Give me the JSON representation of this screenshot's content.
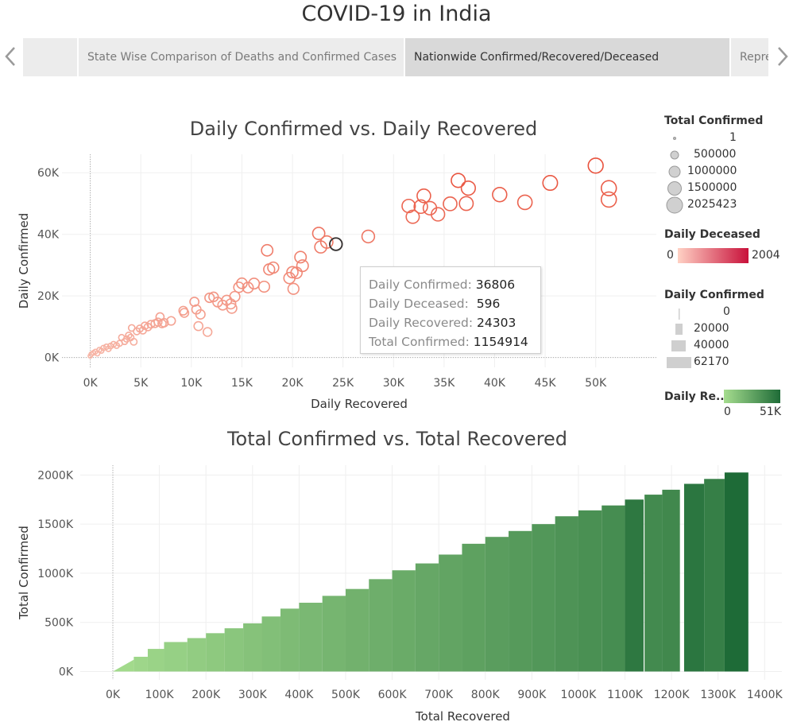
{
  "page_title": "COVID-19 in India",
  "story_tabs": [
    {
      "label": "State Wise Comparison of Deaths and Confirmed Cases",
      "active": false
    },
    {
      "label": "Nationwide Confirmed/Recovered/Deceased",
      "active": true
    },
    {
      "label": "Repre",
      "active": false
    }
  ],
  "nav": {
    "prev_icon": "chevron-left-icon",
    "next_icon": "chevron-right-icon"
  },
  "tooltip": {
    "rows": [
      {
        "label": "Daily Confirmed:",
        "value": "36806"
      },
      {
        "label": "Daily Deceased:",
        "value": "596"
      },
      {
        "label": "Daily Recovered:",
        "value": "24303"
      },
      {
        "label": "Total Confirmed:",
        "value": "1154914"
      }
    ]
  },
  "legends": {
    "size_total_confirmed": {
      "title": "Total Confirmed",
      "items": [
        "1",
        "500000",
        "1000000",
        "1500000",
        "2025423"
      ]
    },
    "color_daily_deceased": {
      "title": "Daily Deceased",
      "min": "0",
      "max": "2004",
      "color_start": "#ffd1c4",
      "color_end": "#c8103a"
    },
    "size_daily_confirmed": {
      "title": "Daily Confirmed",
      "items": [
        "0",
        "20000",
        "40000",
        "62170"
      ]
    },
    "color_daily_recovered": {
      "title": "Daily Re..",
      "min": "0",
      "max": "51K",
      "color_start": "#a6dd8f",
      "color_end": "#1e6b37"
    }
  },
  "chart_data": [
    {
      "type": "scatter",
      "title": "Daily Confirmed vs. Daily Recovered",
      "xlabel": "Daily Recovered",
      "ylabel": "Daily Confirmed",
      "xlim": [
        -2800,
        56000
      ],
      "ylim": [
        -3200,
        66000
      ],
      "x_ticks": [
        0,
        5000,
        10000,
        15000,
        20000,
        25000,
        30000,
        35000,
        40000,
        45000,
        50000
      ],
      "x_tick_labels": [
        "0K",
        "5K",
        "10K",
        "15K",
        "20K",
        "25K",
        "30K",
        "35K",
        "40K",
        "45K",
        "50K"
      ],
      "y_ticks": [
        0,
        20000,
        40000,
        60000
      ],
      "y_tick_labels": [
        "0K",
        "20K",
        "40K",
        "60K"
      ],
      "grid": true,
      "highlighted_point": {
        "x": 24303,
        "y": 36806
      },
      "points": [
        {
          "x": 0,
          "y": 500,
          "t": 1000
        },
        {
          "x": 100,
          "y": 1100,
          "t": 3000
        },
        {
          "x": 300,
          "y": 1500,
          "t": 5000
        },
        {
          "x": 500,
          "y": 1900,
          "t": 8000
        },
        {
          "x": 700,
          "y": 1300,
          "t": 9000
        },
        {
          "x": 900,
          "y": 2500,
          "t": 12000
        },
        {
          "x": 1100,
          "y": 2200,
          "t": 15000
        },
        {
          "x": 1300,
          "y": 3100,
          "t": 20000
        },
        {
          "x": 1600,
          "y": 3500,
          "t": 25000
        },
        {
          "x": 1800,
          "y": 2800,
          "t": 27000
        },
        {
          "x": 2000,
          "y": 3700,
          "t": 35000
        },
        {
          "x": 2300,
          "y": 4300,
          "t": 40000
        },
        {
          "x": 2600,
          "y": 3900,
          "t": 45000
        },
        {
          "x": 2900,
          "y": 4600,
          "t": 52000
        },
        {
          "x": 3100,
          "y": 6500,
          "t": 60000
        },
        {
          "x": 3400,
          "y": 5200,
          "t": 65000
        },
        {
          "x": 3600,
          "y": 6000,
          "t": 72000
        },
        {
          "x": 3800,
          "y": 7200,
          "t": 80000
        },
        {
          "x": 4000,
          "y": 6500,
          "t": 90000
        },
        {
          "x": 4100,
          "y": 9600,
          "t": 100000
        },
        {
          "x": 4300,
          "y": 5100,
          "t": 110000
        },
        {
          "x": 4600,
          "y": 8500,
          "t": 120000
        },
        {
          "x": 4900,
          "y": 9400,
          "t": 135000
        },
        {
          "x": 5200,
          "y": 8800,
          "t": 150000
        },
        {
          "x": 5400,
          "y": 10300,
          "t": 165000
        },
        {
          "x": 5700,
          "y": 9900,
          "t": 180000
        },
        {
          "x": 6000,
          "y": 10800,
          "t": 200000
        },
        {
          "x": 6400,
          "y": 11000,
          "t": 220000
        },
        {
          "x": 6700,
          "y": 11500,
          "t": 240000
        },
        {
          "x": 6900,
          "y": 13200,
          "t": 260000
        },
        {
          "x": 7100,
          "y": 11000,
          "t": 280000
        },
        {
          "x": 7300,
          "y": 11300,
          "t": 300000
        },
        {
          "x": 8000,
          "y": 11900,
          "t": 320000
        },
        {
          "x": 9200,
          "y": 15200,
          "t": 340000
        },
        {
          "x": 9300,
          "y": 14500,
          "t": 360000
        },
        {
          "x": 10300,
          "y": 18100,
          "t": 400000
        },
        {
          "x": 10500,
          "y": 15600,
          "t": 420000
        },
        {
          "x": 10700,
          "y": 10200,
          "t": 380000
        },
        {
          "x": 10900,
          "y": 14000,
          "t": 440000
        },
        {
          "x": 11600,
          "y": 8300,
          "t": 350000
        },
        {
          "x": 11800,
          "y": 19400,
          "t": 460000
        },
        {
          "x": 12200,
          "y": 19700,
          "t": 480000
        },
        {
          "x": 12600,
          "y": 18000,
          "t": 500000
        },
        {
          "x": 13100,
          "y": 17000,
          "t": 520000
        },
        {
          "x": 13500,
          "y": 18600,
          "t": 540000
        },
        {
          "x": 13900,
          "y": 17400,
          "t": 560000
        },
        {
          "x": 14000,
          "y": 16000,
          "t": 580000
        },
        {
          "x": 14300,
          "y": 19800,
          "t": 600000
        },
        {
          "x": 14700,
          "y": 22800,
          "t": 640000
        },
        {
          "x": 15000,
          "y": 24100,
          "t": 680000
        },
        {
          "x": 15600,
          "y": 22700,
          "t": 700000
        },
        {
          "x": 16200,
          "y": 24000,
          "t": 720000
        },
        {
          "x": 17200,
          "y": 23000,
          "t": 760000
        },
        {
          "x": 17500,
          "y": 34800,
          "t": 880000
        },
        {
          "x": 17700,
          "y": 28600,
          "t": 790000
        },
        {
          "x": 18100,
          "y": 29200,
          "t": 800000
        },
        {
          "x": 19700,
          "y": 25800,
          "t": 820000
        },
        {
          "x": 20000,
          "y": 27700,
          "t": 840000
        },
        {
          "x": 20100,
          "y": 22300,
          "t": 780000
        },
        {
          "x": 20400,
          "y": 27500,
          "t": 850000
        },
        {
          "x": 20800,
          "y": 32600,
          "t": 900000
        },
        {
          "x": 21000,
          "y": 29800,
          "t": 920000
        },
        {
          "x": 22600,
          "y": 40300,
          "t": 1080000
        },
        {
          "x": 22800,
          "y": 35900,
          "t": 1040000
        },
        {
          "x": 23400,
          "y": 37500,
          "t": 1100000
        },
        {
          "x": 24303,
          "y": 36806,
          "t": 1154914
        },
        {
          "x": 27500,
          "y": 39300,
          "t": 1200000
        },
        {
          "x": 31500,
          "y": 49200,
          "t": 1400000
        },
        {
          "x": 31900,
          "y": 45700,
          "t": 1350000
        },
        {
          "x": 32700,
          "y": 49000,
          "t": 1450000
        },
        {
          "x": 33000,
          "y": 52500,
          "t": 1480000
        },
        {
          "x": 33600,
          "y": 48500,
          "t": 1430000
        },
        {
          "x": 34400,
          "y": 46500,
          "t": 1420000
        },
        {
          "x": 35600,
          "y": 49900,
          "t": 1500000
        },
        {
          "x": 36400,
          "y": 57500,
          "t": 1600000
        },
        {
          "x": 37200,
          "y": 50000,
          "t": 1550000
        },
        {
          "x": 37400,
          "y": 55000,
          "t": 1650000
        },
        {
          "x": 40500,
          "y": 52900,
          "t": 1700000
        },
        {
          "x": 43000,
          "y": 50400,
          "t": 1750000
        },
        {
          "x": 45500,
          "y": 56700,
          "t": 1850000
        },
        {
          "x": 50000,
          "y": 62300,
          "t": 1950000
        },
        {
          "x": 51300,
          "y": 55000,
          "t": 2000000
        },
        {
          "x": 51300,
          "y": 51300,
          "t": 2025423
        }
      ]
    },
    {
      "type": "bar",
      "title": "Total Confirmed vs. Total Recovered",
      "xlabel": "Total Recovered",
      "ylabel": "Total Confirmed",
      "xlim": [
        -70000,
        1437000
      ],
      "ylim": [
        -85000,
        2100000
      ],
      "x_ticks": [
        0,
        100000,
        200000,
        300000,
        400000,
        500000,
        600000,
        700000,
        800000,
        900000,
        1000000,
        1100000,
        1200000,
        1300000,
        1400000
      ],
      "x_tick_labels": [
        "0K",
        "100K",
        "200K",
        "300K",
        "400K",
        "500K",
        "600K",
        "700K",
        "800K",
        "900K",
        "1000K",
        "1100K",
        "1200K",
        "1300K",
        "1400K"
      ],
      "y_ticks": [
        0,
        500000,
        1000000,
        1500000,
        2000000
      ],
      "y_tick_labels": [
        "0K",
        "500K",
        "1000K",
        "1500K",
        "2000K"
      ],
      "grid": true,
      "note_envelope": [
        [
          0,
          0
        ],
        [
          75000,
          150000
        ],
        [
          200000,
          390000
        ],
        [
          300000,
          490000
        ],
        [
          360000,
          590000
        ],
        [
          400000,
          650000
        ],
        [
          500000,
          775000
        ],
        [
          600000,
          945000
        ],
        [
          700000,
          1100000
        ],
        [
          800000,
          1310000
        ],
        [
          900000,
          1440000
        ],
        [
          1000000,
          1595000
        ],
        [
          1100000,
          1745000
        ],
        [
          1200000,
          1850000
        ],
        [
          1300000,
          1960000
        ],
        [
          1400000,
          2025423
        ]
      ],
      "bars": [
        {
          "x0": 0,
          "x1": 45000,
          "y": 120000,
          "dr": 1500
        },
        {
          "x0": 45000,
          "x1": 75000,
          "y": 150000,
          "dr": 3000
        },
        {
          "x0": 75000,
          "x1": 110000,
          "y": 230000,
          "dr": 4500
        },
        {
          "x0": 110000,
          "x1": 160000,
          "y": 300000,
          "dr": 6000
        },
        {
          "x0": 160000,
          "x1": 200000,
          "y": 340000,
          "dr": 7500
        },
        {
          "x0": 200000,
          "x1": 240000,
          "y": 390000,
          "dr": 9000
        },
        {
          "x0": 240000,
          "x1": 280000,
          "y": 440000,
          "dr": 10500
        },
        {
          "x0": 280000,
          "x1": 320000,
          "y": 490000,
          "dr": 12000
        },
        {
          "x0": 320000,
          "x1": 360000,
          "y": 560000,
          "dr": 13500
        },
        {
          "x0": 360000,
          "x1": 400000,
          "y": 640000,
          "dr": 15000
        },
        {
          "x0": 400000,
          "x1": 450000,
          "y": 700000,
          "dr": 16500
        },
        {
          "x0": 450000,
          "x1": 500000,
          "y": 770000,
          "dr": 18000
        },
        {
          "x0": 500000,
          "x1": 550000,
          "y": 840000,
          "dr": 19500
        },
        {
          "x0": 550000,
          "x1": 600000,
          "y": 940000,
          "dr": 21000
        },
        {
          "x0": 600000,
          "x1": 650000,
          "y": 1030000,
          "dr": 22500
        },
        {
          "x0": 650000,
          "x1": 700000,
          "y": 1100000,
          "dr": 24000
        },
        {
          "x0": 700000,
          "x1": 750000,
          "y": 1190000,
          "dr": 25500
        },
        {
          "x0": 750000,
          "x1": 800000,
          "y": 1300000,
          "dr": 27000
        },
        {
          "x0": 800000,
          "x1": 850000,
          "y": 1370000,
          "dr": 28500
        },
        {
          "x0": 850000,
          "x1": 900000,
          "y": 1430000,
          "dr": 30000
        },
        {
          "x0": 900000,
          "x1": 950000,
          "y": 1500000,
          "dr": 31500
        },
        {
          "x0": 950000,
          "x1": 1000000,
          "y": 1580000,
          "dr": 33000
        },
        {
          "x0": 1000000,
          "x1": 1050000,
          "y": 1640000,
          "dr": 34500
        },
        {
          "x0": 1050000,
          "x1": 1100000,
          "y": 1690000,
          "dr": 36000
        },
        {
          "x0": 1100000,
          "x1": 1140000,
          "y": 1750000,
          "dr": 45000
        },
        {
          "x0": 1142000,
          "x1": 1180000,
          "y": 1800000,
          "dr": 37000
        },
        {
          "x0": 1180000,
          "x1": 1218000,
          "y": 1850000,
          "dr": 38000
        },
        {
          "x0": 1227000,
          "x1": 1270000,
          "y": 1910000,
          "dr": 46000
        },
        {
          "x0": 1270000,
          "x1": 1314000,
          "y": 1960000,
          "dr": 42000
        },
        {
          "x0": 1314000,
          "x1": 1365000,
          "y": 2025423,
          "dr": 51000
        }
      ]
    }
  ]
}
